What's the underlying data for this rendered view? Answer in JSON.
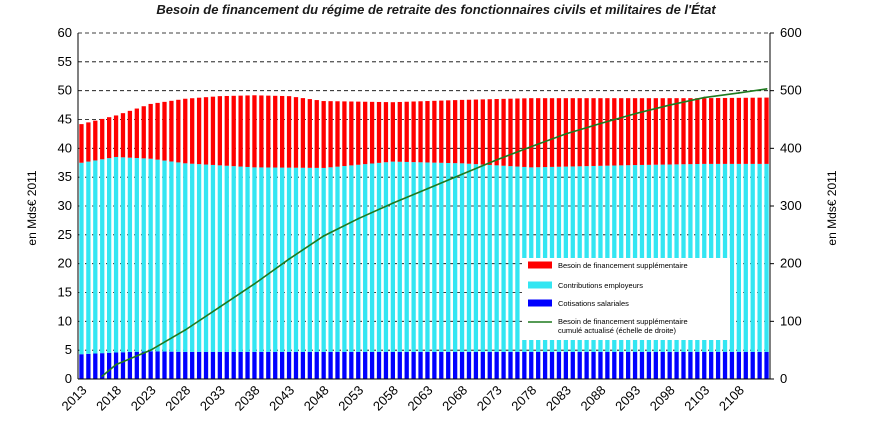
{
  "chart_data": {
    "type": "bar",
    "title": "Besoin de financement du régime de retraite des fonctionnaires civils et militaires de l'État",
    "ylabel": "en Mds€ 2011",
    "y2label": "en Mds€ 2011",
    "ylim": [
      0,
      60
    ],
    "y2lim": [
      0,
      600
    ],
    "yticks": [
      "0",
      "5",
      "10",
      "15",
      "20",
      "25",
      "30",
      "35",
      "40",
      "45",
      "50",
      "55",
      "60"
    ],
    "y2ticks": [
      "0",
      "100",
      "200",
      "300",
      "400",
      "500",
      "600"
    ],
    "xticks": [
      "2013",
      "2018",
      "2023",
      "2028",
      "2033",
      "2038",
      "2043",
      "2048",
      "2053",
      "2058",
      "2063",
      "2068",
      "2073",
      "2078",
      "2083",
      "2088",
      "2093",
      "2098",
      "2103",
      "2108"
    ],
    "stacked": true,
    "grid": "horizontal dashed",
    "legend_position": "center-right",
    "x_start": 2013,
    "x_end": 2112,
    "series": [
      {
        "name": "Cotisations salariales",
        "color": "#0000ff",
        "breakpoints": [
          [
            2013,
            4.3
          ],
          [
            2018,
            4.6
          ],
          [
            2023,
            4.8
          ],
          [
            2028,
            4.7
          ],
          [
            2112,
            4.7
          ]
        ]
      },
      {
        "name": "Contributions employeurs",
        "color": "#33e6f2",
        "breakpoints": [
          [
            2013,
            33.2
          ],
          [
            2018,
            33.9
          ],
          [
            2023,
            33.4
          ],
          [
            2028,
            32.7
          ],
          [
            2038,
            32.0
          ],
          [
            2048,
            31.9
          ],
          [
            2058,
            33.0
          ],
          [
            2068,
            32.7
          ],
          [
            2078,
            32.0
          ],
          [
            2093,
            32.4
          ],
          [
            2103,
            32.6
          ],
          [
            2112,
            32.6
          ]
        ]
      },
      {
        "name": "Besoin de financement supplémentaire",
        "color": "#ff0000",
        "breakpoints": [
          [
            2013,
            6.7
          ],
          [
            2018,
            7.2
          ],
          [
            2023,
            9.5
          ],
          [
            2028,
            11.2
          ],
          [
            2033,
            12.0
          ],
          [
            2038,
            12.5
          ],
          [
            2043,
            12.4
          ],
          [
            2048,
            11.6
          ],
          [
            2058,
            10.3
          ],
          [
            2068,
            11.0
          ],
          [
            2078,
            12.0
          ],
          [
            2093,
            11.6
          ],
          [
            2103,
            11.4
          ],
          [
            2112,
            11.5
          ]
        ]
      },
      {
        "name": "Besoin de financement supplémentaire cumulé actualisé (échelle de droite)",
        "type": "line",
        "axis": "right",
        "color": "#1f7a1f",
        "x": [
          2016,
          2018,
          2023,
          2028,
          2033,
          2038,
          2043,
          2048,
          2053,
          2058,
          2063,
          2068,
          2073,
          2078,
          2083,
          2088,
          2093,
          2098,
          2103,
          2108,
          2112
        ],
        "values": [
          5,
          25,
          50,
          85,
          125,
          165,
          208,
          248,
          278,
          305,
          330,
          355,
          380,
          403,
          425,
          443,
          460,
          475,
          488,
          496,
          503
        ]
      }
    ]
  }
}
